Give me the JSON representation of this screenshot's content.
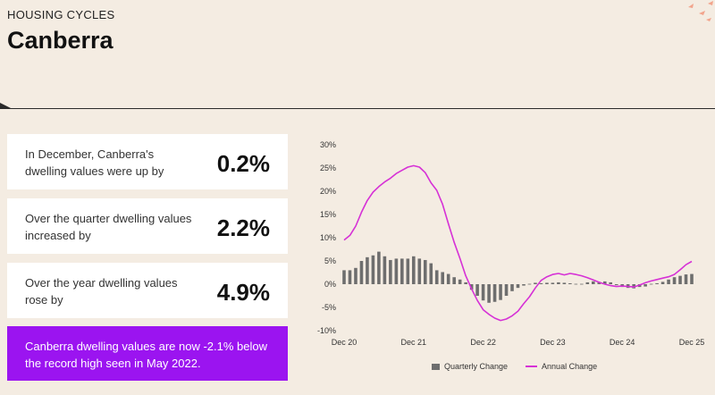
{
  "header": {
    "eyebrow": "HOUSING CYCLES",
    "title": "Canberra"
  },
  "cards": [
    {
      "label": "In December, Canberra's dwelling values were up by",
      "value": "0.2%"
    },
    {
      "label": "Over the quarter dwelling values increased by",
      "value": "2.2%"
    },
    {
      "label": "Over the year dwelling values rose by",
      "value": "4.9%"
    }
  ],
  "callout": {
    "text": "Canberra dwelling values are now -2.1% below the record high seen in May 2022."
  },
  "colors": {
    "background": "#f4ece2",
    "card": "#ffffff",
    "callout": "#9b14f0",
    "bars": "#6e6e6e",
    "line": "#d631d6",
    "deco": "#f2a48c"
  },
  "chart_data": {
    "type": "bar",
    "title": "",
    "xlabel": "",
    "ylabel": "",
    "ylim": [
      -10,
      30
    ],
    "y_ticks": [
      -10,
      -5,
      0,
      5,
      10,
      15,
      20,
      25,
      30
    ],
    "y_tick_labels": [
      "-10%",
      "-5%",
      "0%",
      "5%",
      "10%",
      "15%",
      "20%",
      "25%",
      "30%"
    ],
    "x_ticks": [
      0,
      12,
      24,
      36,
      48,
      60
    ],
    "x_tick_labels": [
      "Dec 20",
      "Dec 21",
      "Dec 22",
      "Dec 23",
      "Dec 24",
      "Dec 25"
    ],
    "legend": [
      "Quarterly Change",
      "Annual Change"
    ],
    "legend_position": "bottom",
    "series": [
      {
        "name": "Quarterly Change",
        "type": "bar",
        "x": [
          0,
          1,
          2,
          3,
          4,
          5,
          6,
          7,
          8,
          9,
          10,
          11,
          12,
          13,
          14,
          15,
          16,
          17,
          18,
          19,
          20,
          21,
          22,
          23,
          24,
          25,
          26,
          27,
          28,
          29,
          30,
          31,
          32,
          33,
          34,
          35,
          36,
          37,
          38,
          39,
          40,
          41,
          42,
          43,
          44,
          45,
          46,
          47,
          48,
          49,
          50,
          51,
          52,
          53,
          54,
          55,
          56,
          57,
          58,
          59,
          60
        ],
        "values": [
          3.0,
          3.0,
          3.5,
          5.0,
          5.8,
          6.2,
          7.0,
          6.0,
          5.2,
          5.5,
          5.5,
          5.5,
          6.0,
          5.5,
          5.2,
          4.5,
          3.0,
          2.6,
          2.2,
          1.5,
          1.0,
          0.4,
          -1.2,
          -2.5,
          -3.5,
          -4.0,
          -3.8,
          -3.4,
          -2.5,
          -1.5,
          -0.8,
          -0.3,
          0.1,
          0.3,
          0.2,
          0.3,
          0.3,
          0.4,
          0.3,
          0.2,
          0.1,
          0.0,
          0.4,
          0.6,
          0.5,
          0.6,
          0.4,
          -0.2,
          -0.6,
          -0.8,
          -0.9,
          -0.6,
          -0.5,
          0.0,
          0.2,
          0.5,
          1.0,
          1.5,
          1.8,
          2.1,
          2.2
        ]
      },
      {
        "name": "Annual Change",
        "type": "line",
        "x": [
          0,
          1,
          2,
          3,
          4,
          5,
          6,
          7,
          8,
          9,
          10,
          11,
          12,
          13,
          14,
          15,
          16,
          17,
          18,
          19,
          20,
          21,
          22,
          23,
          24,
          25,
          26,
          27,
          28,
          29,
          30,
          31,
          32,
          33,
          34,
          35,
          36,
          37,
          38,
          39,
          40,
          41,
          42,
          43,
          44,
          45,
          46,
          47,
          48,
          49,
          50,
          51,
          52,
          53,
          54,
          55,
          56,
          57,
          58,
          59,
          60
        ],
        "values": [
          9.5,
          10.5,
          12.5,
          15.5,
          18.0,
          19.8,
          21.0,
          22.0,
          22.8,
          23.8,
          24.5,
          25.2,
          25.5,
          25.2,
          24.0,
          21.8,
          20.2,
          17.2,
          13.0,
          9.0,
          5.5,
          1.8,
          -1.0,
          -3.5,
          -5.5,
          -6.5,
          -7.3,
          -7.8,
          -7.5,
          -6.8,
          -5.8,
          -4.2,
          -2.7,
          -0.8,
          0.8,
          1.6,
          2.1,
          2.3,
          2.0,
          2.3,
          2.1,
          1.8,
          1.4,
          0.9,
          0.4,
          0.0,
          -0.3,
          -0.5,
          -0.4,
          -0.5,
          -0.6,
          -0.2,
          0.3,
          0.7,
          1.0,
          1.3,
          1.6,
          2.1,
          3.1,
          4.2,
          4.9
        ]
      }
    ]
  }
}
